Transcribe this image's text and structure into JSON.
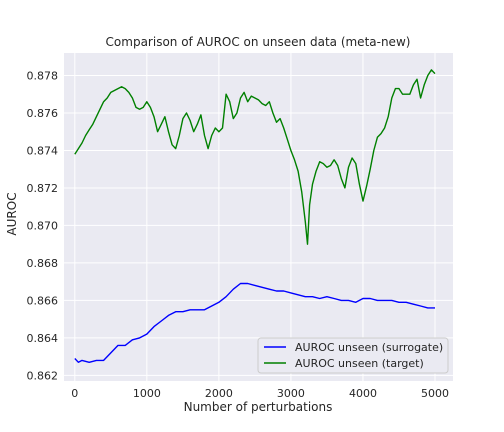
{
  "chart_data": {
    "type": "line",
    "title": "Comparison of AUROC on unseen data (meta-new)",
    "xlabel": "Number of perturbations",
    "ylabel": "AUROC",
    "xlim": [
      -150,
      5250
    ],
    "ylim": [
      0.8617,
      0.8792
    ],
    "xticks": [
      "0",
      "1000",
      "2000",
      "3000",
      "4000",
      "5000"
    ],
    "xtick_values": [
      0,
      1000,
      2000,
      3000,
      4000,
      5000
    ],
    "yticks": [
      "0.862",
      "0.864",
      "0.866",
      "0.868",
      "0.870",
      "0.872",
      "0.874",
      "0.876",
      "0.878"
    ],
    "ytick_values": [
      0.862,
      0.864,
      0.866,
      0.868,
      0.87,
      0.872,
      0.874,
      0.876,
      0.878
    ],
    "grid": true,
    "legend_position": "lower-right",
    "colors": {
      "background": "#eaeaf2",
      "grid": "#ffffff"
    },
    "series": [
      {
        "name": "AUROC unseen (surrogate)",
        "color": "#0000ff",
        "x": [
          0,
          50,
          100,
          200,
          300,
          400,
          450,
          500,
          600,
          700,
          800,
          900,
          1000,
          1100,
          1200,
          1300,
          1400,
          1500,
          1600,
          1700,
          1800,
          1900,
          2000,
          2100,
          2200,
          2300,
          2400,
          2500,
          2600,
          2700,
          2800,
          2900,
          3000,
          3100,
          3200,
          3300,
          3400,
          3500,
          3600,
          3700,
          3800,
          3900,
          4000,
          4100,
          4200,
          4300,
          4400,
          4500,
          4600,
          4700,
          4800,
          4900,
          5000
        ],
        "values": [
          0.8629,
          0.8627,
          0.8628,
          0.8627,
          0.8628,
          0.8628,
          0.863,
          0.8632,
          0.8636,
          0.8636,
          0.8639,
          0.864,
          0.8642,
          0.8646,
          0.8649,
          0.8652,
          0.8654,
          0.8654,
          0.8655,
          0.8655,
          0.8655,
          0.8657,
          0.8659,
          0.8662,
          0.8666,
          0.8669,
          0.8669,
          0.8668,
          0.8667,
          0.8666,
          0.8665,
          0.8665,
          0.8664,
          0.8663,
          0.8662,
          0.8662,
          0.8661,
          0.8662,
          0.8661,
          0.866,
          0.866,
          0.8659,
          0.8661,
          0.8661,
          0.866,
          0.866,
          0.866,
          0.8659,
          0.8659,
          0.8658,
          0.8657,
          0.8656,
          0.8656
        ]
      },
      {
        "name": "AUROC unseen (target)",
        "color": "#008000",
        "x": [
          0,
          50,
          100,
          150,
          200,
          250,
          300,
          350,
          400,
          450,
          500,
          550,
          600,
          650,
          700,
          750,
          800,
          850,
          900,
          950,
          1000,
          1050,
          1100,
          1150,
          1200,
          1250,
          1300,
          1350,
          1400,
          1450,
          1500,
          1550,
          1600,
          1650,
          1700,
          1750,
          1800,
          1850,
          1900,
          1950,
          2000,
          2050,
          2100,
          2150,
          2200,
          2250,
          2300,
          2350,
          2400,
          2450,
          2500,
          2550,
          2600,
          2650,
          2700,
          2750,
          2800,
          2850,
          2900,
          2950,
          3000,
          3050,
          3100,
          3150,
          3200,
          3230,
          3260,
          3300,
          3350,
          3400,
          3450,
          3500,
          3550,
          3600,
          3650,
          3700,
          3750,
          3800,
          3850,
          3900,
          3950,
          4000,
          4050,
          4100,
          4150,
          4200,
          4250,
          4300,
          4350,
          4400,
          4450,
          4500,
          4550,
          4600,
          4650,
          4700,
          4750,
          4800,
          4850,
          4900,
          4950,
          5000
        ],
        "values": [
          0.8738,
          0.8741,
          0.8744,
          0.8748,
          0.8751,
          0.8754,
          0.8758,
          0.8762,
          0.8766,
          0.8768,
          0.8771,
          0.8772,
          0.8773,
          0.8774,
          0.8773,
          0.8771,
          0.8768,
          0.8763,
          0.8762,
          0.8763,
          0.8766,
          0.8763,
          0.8758,
          0.875,
          0.8754,
          0.8758,
          0.875,
          0.8743,
          0.8741,
          0.8748,
          0.8757,
          0.876,
          0.8756,
          0.875,
          0.8754,
          0.8759,
          0.8748,
          0.8741,
          0.8748,
          0.8752,
          0.875,
          0.8752,
          0.877,
          0.8766,
          0.8757,
          0.876,
          0.8768,
          0.8771,
          0.8766,
          0.8769,
          0.8768,
          0.8767,
          0.8765,
          0.8764,
          0.8766,
          0.876,
          0.8755,
          0.8757,
          0.8752,
          0.8746,
          0.874,
          0.8735,
          0.8729,
          0.8718,
          0.8702,
          0.869,
          0.8711,
          0.8722,
          0.8729,
          0.8734,
          0.8733,
          0.8731,
          0.8732,
          0.8735,
          0.8732,
          0.8725,
          0.872,
          0.8731,
          0.8736,
          0.8733,
          0.8722,
          0.8713,
          0.8721,
          0.873,
          0.874,
          0.8747,
          0.8749,
          0.8752,
          0.8758,
          0.8768,
          0.8773,
          0.8773,
          0.877,
          0.877,
          0.877,
          0.8775,
          0.8778,
          0.8768,
          0.8775,
          0.878,
          0.8783,
          0.8781
        ]
      }
    ]
  }
}
